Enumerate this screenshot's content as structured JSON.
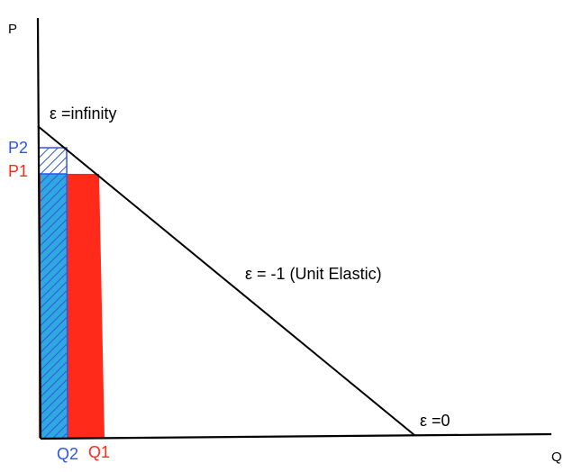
{
  "axes": {
    "y_label": "P",
    "x_label": "Q"
  },
  "annotations": {
    "top": "ε =infinity",
    "middle": "ε = -1 (Unit Elastic)",
    "bottom": "ε =0"
  },
  "prices": {
    "p2": "P2",
    "p1": "P1"
  },
  "quantities": {
    "q2": "Q2",
    "q1": "Q1"
  },
  "colors": {
    "axis_line": "#000000",
    "demand_line": "#000000",
    "price1_quantity1": "#ff2a1a",
    "price2_quantity2": "#2f56e0",
    "hatch_fill": "#2fa8e0"
  }
}
